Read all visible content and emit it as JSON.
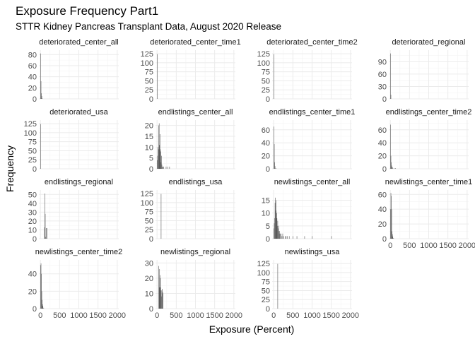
{
  "title": "Exposure Frequency Part1",
  "subtitle": "STTR Kidney Pancreas Transplant Data, August 2020 Release",
  "xlabel": "Exposure (Percent)",
  "ylabel": "Frequency",
  "chart_data": {
    "type": "bar",
    "facet": "wrap",
    "ncol": 4,
    "x_shared": true,
    "xlim": [
      -40,
      2040
    ],
    "x_ticks": [
      0,
      500,
      1000,
      1500,
      2000
    ],
    "x_tick_labels": [
      "0",
      "500",
      "1000",
      "1500",
      "2000"
    ],
    "bin_width": 10,
    "bar_color": "#595959",
    "grid": true,
    "panels": [
      {
        "name": "deteriorated_center_all",
        "ylim": [
          0,
          88
        ],
        "y_ticks": [
          0,
          20,
          40,
          60,
          80
        ],
        "bins": [
          [
            0,
            82
          ],
          [
            10,
            32
          ],
          [
            20,
            10
          ],
          [
            30,
            5
          ],
          [
            40,
            1
          ]
        ]
      },
      {
        "name": "deteriorated_center_time1",
        "ylim": [
          0,
          135
        ],
        "y_ticks": [
          0,
          25,
          50,
          75,
          100,
          125
        ],
        "bins": [
          [
            0,
            124
          ]
        ]
      },
      {
        "name": "deteriorated_center_time2",
        "ylim": [
          0,
          135
        ],
        "y_ticks": [
          0,
          25,
          50,
          75,
          100,
          125
        ],
        "bins": [
          [
            0,
            124
          ]
        ]
      },
      {
        "name": "deteriorated_regional",
        "ylim": [
          0,
          118
        ],
        "y_ticks": [
          0,
          30,
          60,
          90
        ],
        "bins": [
          [
            0,
            110
          ],
          [
            10,
            10
          ]
        ]
      },
      {
        "name": "deteriorated_usa",
        "ylim": [
          0,
          135
        ],
        "y_ticks": [
          0,
          25,
          50,
          75,
          100,
          125
        ],
        "bins": [
          [
            0,
            124
          ]
        ]
      },
      {
        "name": "endlistings_center_all",
        "ylim": [
          0,
          22.5
        ],
        "y_ticks": [
          0,
          5,
          10,
          15,
          20
        ],
        "bins": [
          [
            0,
            4
          ],
          [
            10,
            6
          ],
          [
            20,
            10
          ],
          [
            30,
            9
          ],
          [
            40,
            20
          ],
          [
            50,
            21
          ],
          [
            60,
            11
          ],
          [
            70,
            16
          ],
          [
            80,
            9
          ],
          [
            90,
            8
          ],
          [
            100,
            3
          ],
          [
            110,
            6
          ],
          [
            120,
            2
          ],
          [
            130,
            1
          ],
          [
            150,
            1
          ],
          [
            170,
            1
          ],
          [
            230,
            1
          ],
          [
            280,
            1
          ],
          [
            320,
            1
          ]
        ]
      },
      {
        "name": "endlistings_center_time1",
        "ylim": [
          0,
          75
        ],
        "y_ticks": [
          0,
          20,
          40,
          60
        ],
        "bins": [
          [
            0,
            65
          ],
          [
            10,
            38
          ],
          [
            20,
            10
          ],
          [
            30,
            4
          ],
          [
            50,
            1
          ]
        ]
      },
      {
        "name": "endlistings_center_time2",
        "ylim": [
          0,
          75
        ],
        "y_ticks": [
          0,
          20,
          40,
          60
        ],
        "bins": [
          [
            0,
            68
          ],
          [
            10,
            20
          ],
          [
            20,
            10
          ],
          [
            30,
            5
          ],
          [
            40,
            3
          ],
          [
            60,
            2
          ],
          [
            90,
            1
          ],
          [
            130,
            1
          ]
        ]
      },
      {
        "name": "endlistings_regional",
        "ylim": [
          0,
          55
        ],
        "y_ticks": [
          0,
          10,
          20,
          30,
          40,
          50
        ],
        "bins": [
          [
            100,
            13
          ],
          [
            110,
            51
          ],
          [
            120,
            28
          ],
          [
            130,
            2
          ],
          [
            150,
            12
          ],
          [
            170,
            12
          ]
        ]
      },
      {
        "name": "endlistings_usa",
        "ylim": [
          0,
          135
        ],
        "y_ticks": [
          0,
          25,
          50,
          75,
          100,
          125
        ],
        "bins": [
          [
            100,
            124
          ]
        ]
      },
      {
        "name": "newlistings_center_all",
        "ylim": [
          0,
          19
        ],
        "y_ticks": [
          0,
          5,
          10,
          15
        ],
        "bins": [
          [
            0,
            4
          ],
          [
            10,
            6
          ],
          [
            20,
            8
          ],
          [
            30,
            14
          ],
          [
            40,
            16
          ],
          [
            50,
            11
          ],
          [
            60,
            15
          ],
          [
            70,
            10
          ],
          [
            80,
            8
          ],
          [
            90,
            5
          ],
          [
            100,
            7
          ],
          [
            110,
            4
          ],
          [
            120,
            3
          ],
          [
            130,
            5
          ],
          [
            140,
            2
          ],
          [
            150,
            3
          ],
          [
            170,
            2
          ],
          [
            190,
            2
          ],
          [
            210,
            1
          ],
          [
            230,
            2
          ],
          [
            260,
            1
          ],
          [
            300,
            1
          ],
          [
            320,
            1
          ],
          [
            350,
            1
          ],
          [
            400,
            1
          ],
          [
            500,
            1
          ],
          [
            600,
            1
          ],
          [
            800,
            1
          ],
          [
            1000,
            1
          ],
          [
            1500,
            1
          ]
        ]
      },
      {
        "name": "newlistings_center_time1",
        "ylim": [
          0,
          66
        ],
        "y_ticks": [
          0,
          20,
          40,
          60
        ],
        "bins": [
          [
            0,
            40
          ],
          [
            10,
            62
          ],
          [
            20,
            58
          ],
          [
            30,
            40
          ],
          [
            40,
            10
          ],
          [
            50,
            6
          ],
          [
            60,
            3
          ],
          [
            80,
            1
          ]
        ]
      },
      {
        "name": "newlistings_center_time2",
        "ylim": [
          0,
          56
        ],
        "y_ticks": [
          0,
          20,
          40
        ],
        "bins": [
          [
            0,
            50
          ],
          [
            10,
            52
          ],
          [
            20,
            40
          ],
          [
            30,
            20
          ],
          [
            40,
            10
          ],
          [
            50,
            5
          ],
          [
            60,
            3
          ],
          [
            80,
            1
          ]
        ]
      },
      {
        "name": "newlistings_regional",
        "ylim": [
          0,
          32
        ],
        "y_ticks": [
          0,
          10,
          20,
          30
        ],
        "bins": [
          [
            40,
            28
          ],
          [
            50,
            14
          ],
          [
            60,
            26
          ],
          [
            70,
            22
          ],
          [
            80,
            20
          ],
          [
            90,
            14
          ],
          [
            100,
            12
          ],
          [
            110,
            8
          ],
          [
            120,
            12
          ],
          [
            130,
            13
          ],
          [
            140,
            11
          ],
          [
            150,
            10
          ]
        ]
      },
      {
        "name": "newlistings_usa",
        "ylim": [
          0,
          135
        ],
        "y_ticks": [
          0,
          25,
          50,
          75,
          100,
          125
        ],
        "bins": [
          [
            100,
            124
          ]
        ]
      }
    ]
  }
}
